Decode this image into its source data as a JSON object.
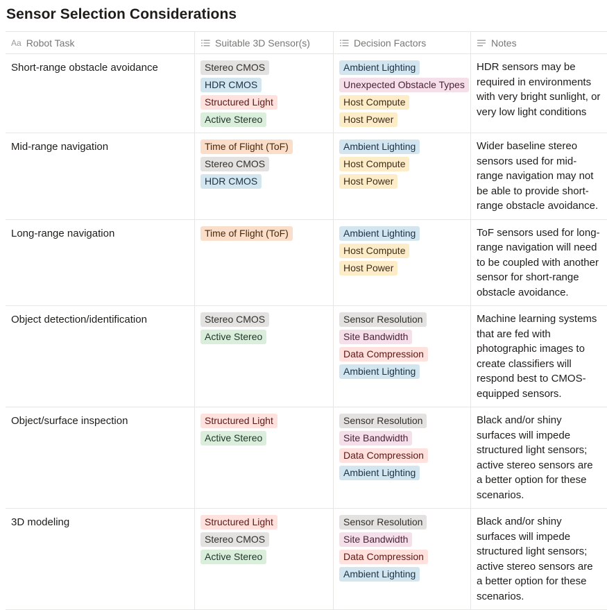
{
  "page": {
    "title": "Sensor Selection Considerations"
  },
  "table": {
    "columns": [
      {
        "label": "Robot Task",
        "icon": "title"
      },
      {
        "label": "Suitable 3D Sensor(s)",
        "icon": "multiselect"
      },
      {
        "label": "Decision Factors",
        "icon": "multiselect"
      },
      {
        "label": "Notes",
        "icon": "text"
      }
    ],
    "rows": [
      {
        "task": "Short-range obstacle avoidance",
        "sensors": [
          {
            "label": "Stereo CMOS",
            "color": "gray"
          },
          {
            "label": "HDR CMOS",
            "color": "blue"
          },
          {
            "label": "Structured Light",
            "color": "red"
          },
          {
            "label": "Active Stereo",
            "color": "green"
          }
        ],
        "factors": [
          {
            "label": "Ambient Lighting",
            "color": "blue"
          },
          {
            "label": "Unexpected Obstacle Types",
            "color": "pink"
          },
          {
            "label": "Host Compute",
            "color": "yellow"
          },
          {
            "label": "Host Power",
            "color": "yellow"
          }
        ],
        "notes": "HDR sensors may be required in environments with very bright sunlight, or very low light conditions"
      },
      {
        "task": "Mid-range navigation",
        "sensors": [
          {
            "label": "Time of Flight (ToF)",
            "color": "orange"
          },
          {
            "label": "Stereo CMOS",
            "color": "gray"
          },
          {
            "label": "HDR CMOS",
            "color": "blue"
          }
        ],
        "factors": [
          {
            "label": "Ambient Lighting",
            "color": "blue"
          },
          {
            "label": "Host Compute",
            "color": "yellow"
          },
          {
            "label": "Host Power",
            "color": "yellow"
          }
        ],
        "notes": "Wider baseline stereo sensors used for mid-range navigation may not be able to provide short-range obstacle avoidance."
      },
      {
        "task": "Long-range navigation",
        "sensors": [
          {
            "label": "Time of Flight (ToF)",
            "color": "orange"
          }
        ],
        "factors": [
          {
            "label": "Ambient Lighting",
            "color": "blue"
          },
          {
            "label": "Host Compute",
            "color": "yellow"
          },
          {
            "label": "Host Power",
            "color": "yellow"
          }
        ],
        "notes": "ToF sensors used for long-range navigation will need to be coupled with another sensor for short-range obstacle avoidance."
      },
      {
        "task": "Object detection/identification",
        "sensors": [
          {
            "label": "Stereo CMOS",
            "color": "gray"
          },
          {
            "label": "Active Stereo",
            "color": "green"
          }
        ],
        "factors": [
          {
            "label": "Sensor Resolution",
            "color": "gray"
          },
          {
            "label": "Site Bandwidth",
            "color": "pink"
          },
          {
            "label": "Data Compression",
            "color": "red"
          },
          {
            "label": "Ambient Lighting",
            "color": "blue"
          }
        ],
        "notes": "Machine learning systems that are fed with photographic images to create classifiers will respond best to CMOS-equipped sensors."
      },
      {
        "task": "Object/surface inspection",
        "sensors": [
          {
            "label": "Structured Light",
            "color": "red"
          },
          {
            "label": "Active Stereo",
            "color": "green"
          }
        ],
        "factors": [
          {
            "label": "Sensor Resolution",
            "color": "gray"
          },
          {
            "label": "Site Bandwidth",
            "color": "pink"
          },
          {
            "label": "Data Compression",
            "color": "red"
          },
          {
            "label": "Ambient Lighting",
            "color": "blue"
          }
        ],
        "notes": "Black and/or shiny surfaces will impede structured light sensors; active stereo sensors are a better option for these scenarios."
      },
      {
        "task": "3D modeling",
        "sensors": [
          {
            "label": "Structured Light",
            "color": "red"
          },
          {
            "label": "Stereo CMOS",
            "color": "gray"
          },
          {
            "label": "Active Stereo",
            "color": "green"
          }
        ],
        "factors": [
          {
            "label": "Sensor Resolution",
            "color": "gray"
          },
          {
            "label": "Site Bandwidth",
            "color": "pink"
          },
          {
            "label": "Data Compression",
            "color": "red"
          },
          {
            "label": "Ambient Lighting",
            "color": "blue"
          }
        ],
        "notes": "Black and/or shiny surfaces will impede structured light sensors; active stereo sensors are a better option for these scenarios."
      }
    ]
  },
  "tag_colors": {
    "gray": {
      "bg": "#E3E2E0",
      "text": "#32302C"
    },
    "blue": {
      "bg": "#D3E5EF",
      "text": "#183347"
    },
    "green": {
      "bg": "#DBEDDB",
      "text": "#1C3829"
    },
    "yellow": {
      "bg": "#FDECC8",
      "text": "#402C1B"
    },
    "orange": {
      "bg": "#FADEC9",
      "text": "#49290E"
    },
    "pink": {
      "bg": "#F5E0E9",
      "text": "#4C2337"
    },
    "red": {
      "bg": "#FFE2DD",
      "text": "#5D1715"
    }
  }
}
